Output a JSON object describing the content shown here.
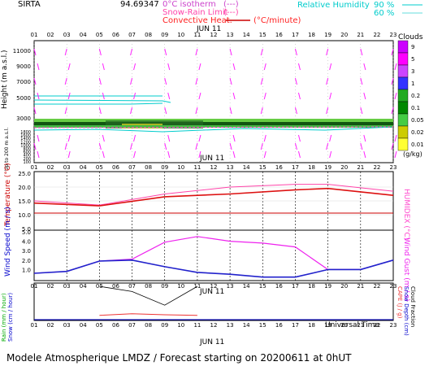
{
  "header": {
    "station": "SIRTA",
    "coord": "94.69347",
    "isotherm_label": "0°C isotherm",
    "isotherm_key": "(---)",
    "snowrain_label": "Snow-Rain Limit",
    "snowrain_key": "(---)",
    "convective_label": "Convective Heat.",
    "convective_unit": "(°C/minute)",
    "rh_label": "Relative Humidity",
    "rh_90": "90 %",
    "rh_60": "60 %"
  },
  "date_label": "JUN 11",
  "hours": [
    "01",
    "02",
    "03",
    "04",
    "05",
    "06",
    "07",
    "08",
    "09",
    "10",
    "11",
    "12",
    "13",
    "14",
    "15",
    "16",
    "17",
    "18",
    "19",
    "20",
    "21",
    "22",
    "23"
  ],
  "clouds": {
    "title": "Clouds",
    "unit": "(g/kg)",
    "levels": [
      "9",
      "5",
      "3",
      "1",
      "0.2",
      "0.1",
      "0.05",
      "0.02",
      "0.01"
    ],
    "colors": [
      "#cc00ff",
      "#ff00ff",
      "#cc44ff",
      "#3333ff",
      "#22aa22",
      "#008800",
      "#44cc44",
      "#cccc00",
      "#ffff33"
    ]
  },
  "upper_panel": {
    "ylabel": "Height (m a.s.l.)",
    "ylabel2": "Up to 200 m a.s.l.",
    "high_ticks": [
      "11000",
      "9000",
      "7000",
      "5000",
      "3000"
    ],
    "low_ticks": [
      "1800",
      "1600",
      "1400",
      "1200",
      "1000",
      "800",
      "600",
      "400",
      "200",
      "100"
    ]
  },
  "temp_panel": {
    "ylabel": "Temperature (°C)",
    "ylabel_right": "HUMIDEX (°C)",
    "ticks": [
      "25.0",
      "20.0",
      "15.0",
      "10.0",
      "5.0"
    ]
  },
  "wind_panel": {
    "ylabel": "Wind Speed (m / s)",
    "ylabel_right": "Wind Gust (m / s)",
    "ticks": [
      "5.0",
      "4.0",
      "3.0",
      "2.0",
      "1.0"
    ]
  },
  "precip_panel": {
    "ylabel": "Rain (mm / hour)",
    "ylabel2": "Snow (cm / hour)",
    "ylabel_right": "CAPE (J / g)",
    "ylabel_right2": "Snow Depth (cm)",
    "ylabel_right3": "Cloud Fraction",
    "xlabel": "Universal Time"
  },
  "footer": "Modele Atmospherique LMDZ / Forecast starting on 20200611 at 0hUT",
  "chart_data": [
    {
      "type": "line",
      "title": "",
      "xlabel": "",
      "ylabel": "Temperature (°C)",
      "x": [
        1,
        5,
        9,
        13,
        17,
        19,
        23
      ],
      "series": [
        {
          "name": "Temperature (°C)",
          "values": [
            14.2,
            13.2,
            16.5,
            17.5,
            19.0,
            19.5,
            17.0
          ]
        },
        {
          "name": "HUMIDEX (°C)",
          "values": [
            15.0,
            13.5,
            17.5,
            20.0,
            21.0,
            21.0,
            18.5
          ]
        }
      ],
      "ylim": [
        5,
        25
      ]
    },
    {
      "type": "line",
      "title": "",
      "xlabel": "",
      "ylabel": "Wind Speed (m / s)",
      "x": [
        1,
        3,
        5,
        7,
        9,
        11,
        13,
        15,
        17,
        19,
        21,
        23
      ],
      "series": [
        {
          "name": "Wind Speed (m / s)",
          "values": [
            0.6,
            0.8,
            1.9,
            2.0,
            1.3,
            0.7,
            0.5,
            0.2,
            0.2,
            1.0,
            1.0,
            2.0
          ]
        },
        {
          "name": "Wind Gust (m / s)",
          "values": [
            0.6,
            0.8,
            1.9,
            2.1,
            3.9,
            4.5,
            4.0,
            3.8,
            3.4,
            1.0,
            1.0,
            2.0
          ]
        }
      ],
      "ylim": [
        0,
        5
      ]
    },
    {
      "type": "line",
      "title": "",
      "xlabel": "Universal Time",
      "ylabel": "Rain (mm / hour)",
      "x": [
        5,
        7,
        9,
        11
      ],
      "series": [
        {
          "name": "Cloud Fraction",
          "values": [
            0.95,
            0.8,
            0.4,
            0.95
          ]
        },
        {
          "name": "CAPE (J / g)",
          "values": [
            0.1,
            0.15,
            0.12,
            0.1
          ]
        }
      ],
      "ylim": [
        0,
        1
      ]
    }
  ]
}
